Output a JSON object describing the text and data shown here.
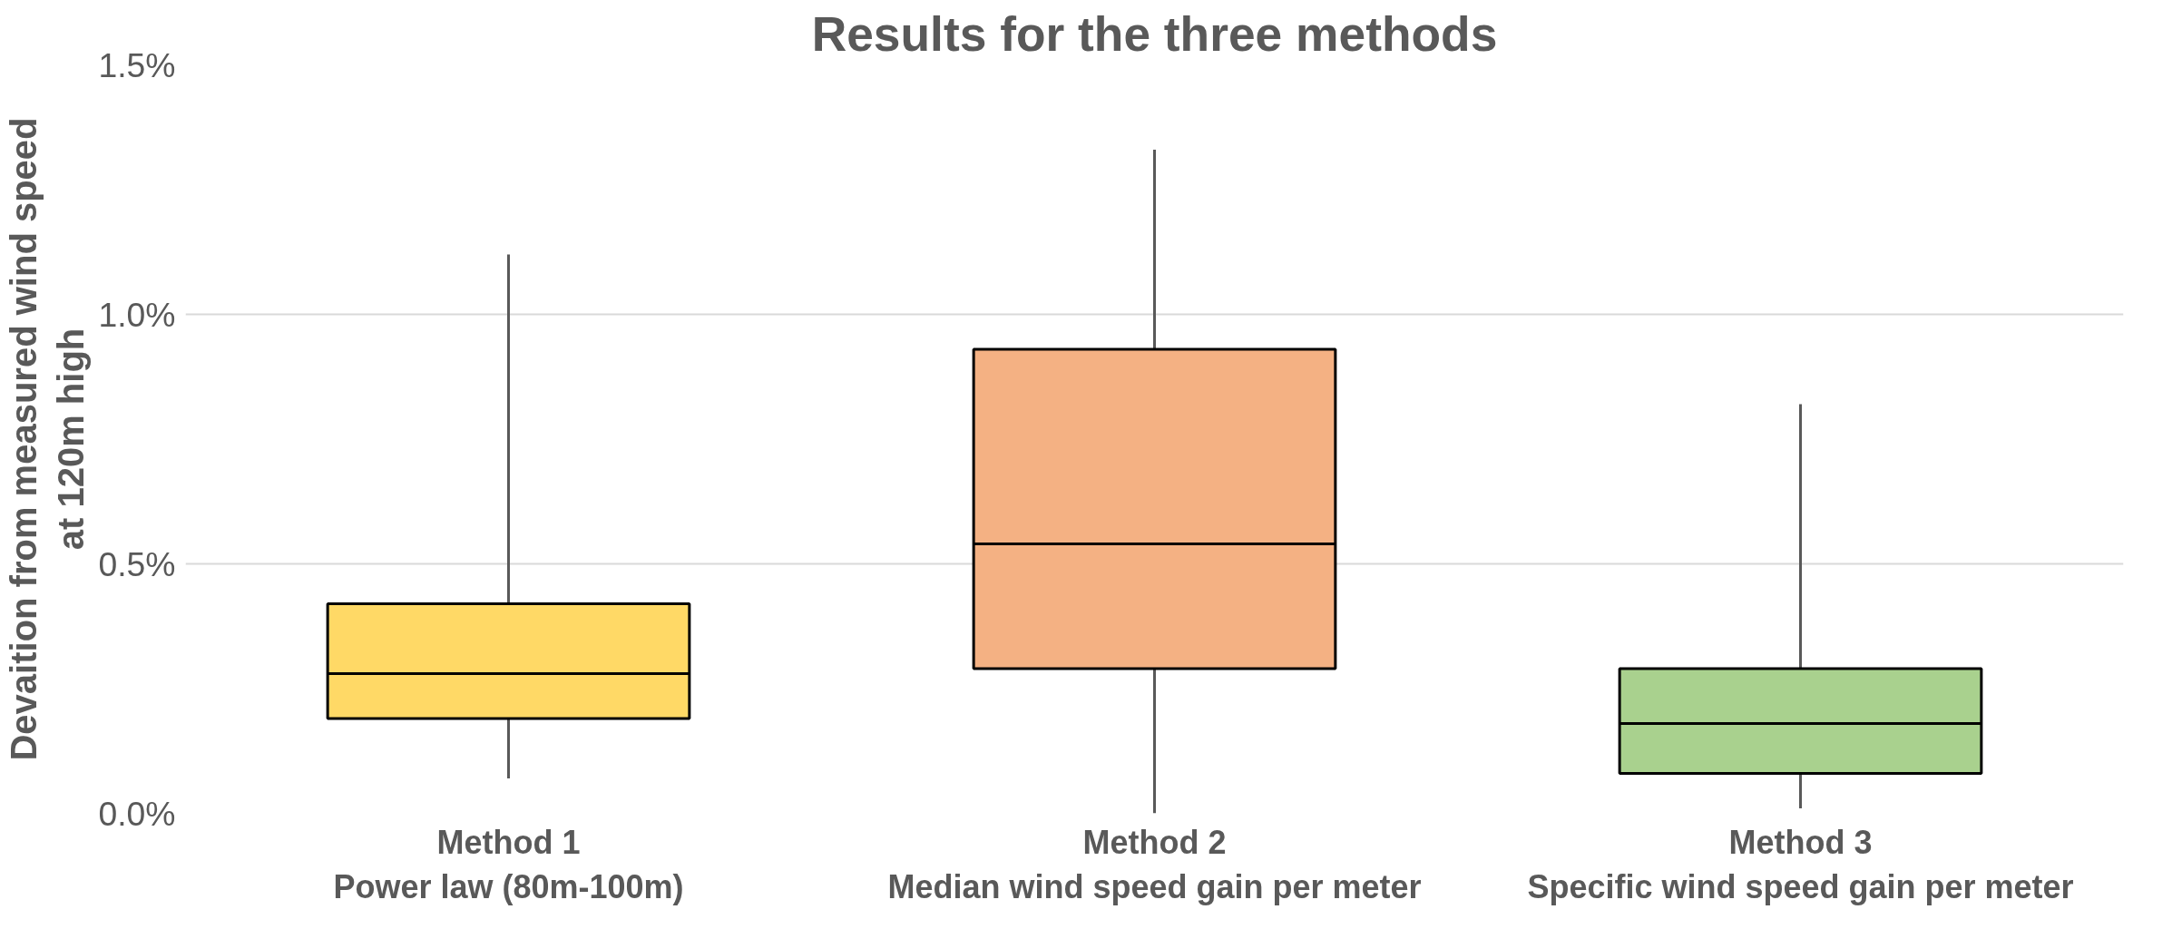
{
  "chart_data": {
    "type": "box",
    "title": "Results for the three methods",
    "ylabel": "Devaition from measured wind speed\nat 120m high",
    "categories": [
      "Method 1\nPower law (80m-100m)",
      "Method 2\nMedian wind speed gain per meter",
      "Method 3\nSpecific wind speed gain per meter"
    ],
    "colors": [
      "#ffd966",
      "#f4b183",
      "#a9d18e"
    ],
    "boxes": [
      {
        "low": 0.07,
        "q1": 0.19,
        "median": 0.28,
        "q3": 0.42,
        "high": 1.12
      },
      {
        "low": 0.0,
        "q1": 0.29,
        "median": 0.54,
        "q3": 0.93,
        "high": 1.33
      },
      {
        "low": 0.01,
        "q1": 0.08,
        "median": 0.18,
        "q3": 0.29,
        "high": 0.82
      }
    ],
    "ylim": [
      0,
      1.5
    ],
    "yticks": [
      {
        "value": 0,
        "label": "0.0%"
      },
      {
        "value": 0.5,
        "label": "0.5%"
      },
      {
        "value": 1.0,
        "label": "1.0%"
      },
      {
        "value": 1.5,
        "label": "1.5%"
      }
    ],
    "grid": "y"
  }
}
